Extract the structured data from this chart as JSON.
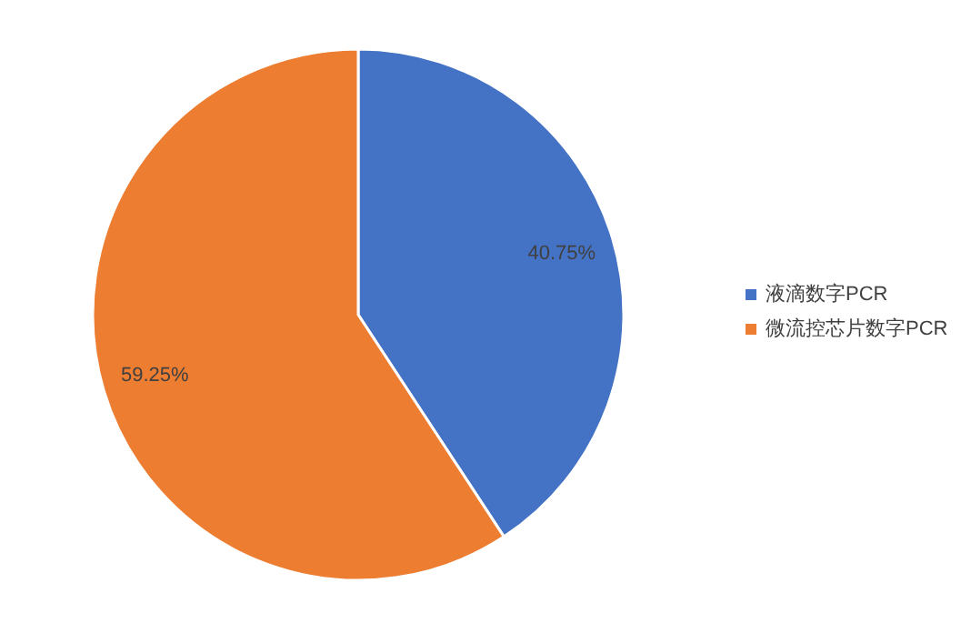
{
  "chart_data": {
    "type": "pie",
    "categories": [
      "液滴数字PCR",
      "微流控芯片数字PCR"
    ],
    "values": [
      40.75,
      59.25
    ],
    "colors": [
      "#4472c4",
      "#ed7d31"
    ],
    "value_labels": [
      "40.75%",
      "59.25%"
    ],
    "legend": "right"
  }
}
